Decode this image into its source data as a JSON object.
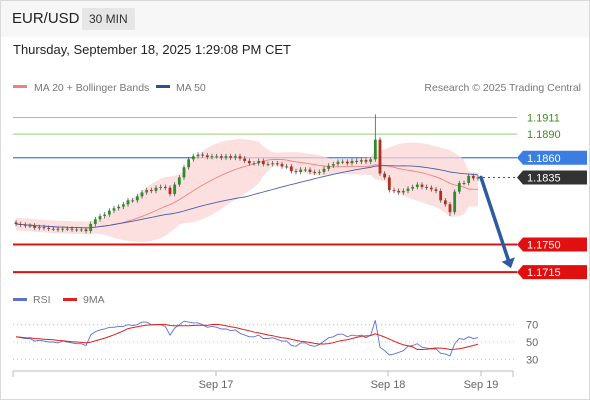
{
  "header": {
    "symbol": "EUR/USD",
    "timeframe": "30 MIN",
    "datetime": "Thursday, September 18, 2025 1:29:08 PM CET"
  },
  "legend": {
    "ma20_label": "MA 20 + Bollinger Bands",
    "ma50_label": "MA 50",
    "credit": "Research © 2025 Trading Central",
    "colors": {
      "ma20": "#f08080",
      "ma50": "#4a5fa8",
      "band_fill": "#fbd5d5"
    }
  },
  "levels": [
    {
      "name": "resistance-2",
      "value": 1.1911,
      "label": "1.1911",
      "style": "green-thin"
    },
    {
      "name": "resistance-1",
      "value": 1.189,
      "label": "1.1890",
      "style": "green-thin"
    },
    {
      "name": "pivot",
      "value": 1.186,
      "label": "1.1860",
      "style": "blue"
    },
    {
      "name": "last-price",
      "value": 1.1835,
      "label": "1.1835",
      "style": "dark"
    },
    {
      "name": "support-1",
      "value": 1.175,
      "label": "1.1750",
      "style": "red"
    },
    {
      "name": "support-2",
      "value": 1.1715,
      "label": "1.1715",
      "style": "red"
    }
  ],
  "chart_data": {
    "type": "candlestick",
    "instrument": "EUR/USD",
    "interval": "30 MIN",
    "ylim": [
      1.1691,
      1.1932
    ],
    "x_tick_labels": [
      "Sep 17",
      "Sep 18",
      "Sep 19"
    ],
    "candle_count": 100,
    "closes": [
      1.1776,
      1.1775,
      1.1774,
      1.1774,
      1.1771,
      1.1772,
      1.1771,
      1.177,
      1.177,
      1.1769,
      1.177,
      1.177,
      1.1769,
      1.1769,
      1.1769,
      1.1767,
      1.1776,
      1.1782,
      1.1786,
      1.1788,
      1.1793,
      1.1796,
      1.1798,
      1.1801,
      1.1806,
      1.1806,
      1.1811,
      1.1816,
      1.1819,
      1.1818,
      1.1822,
      1.1823,
      1.1822,
      1.1814,
      1.1826,
      1.1835,
      1.1848,
      1.1858,
      1.1862,
      1.1864,
      1.1863,
      1.1861,
      1.1862,
      1.1862,
      1.186,
      1.1862,
      1.186,
      1.1862,
      1.1859,
      1.1856,
      1.1853,
      1.1853,
      1.1856,
      1.1852,
      1.1852,
      1.1853,
      1.1852,
      1.1849,
      1.1849,
      1.1843,
      1.1842,
      1.1845,
      1.1845,
      1.1842,
      1.1841,
      1.1842,
      1.1846,
      1.185,
      1.1852,
      1.1855,
      1.1855,
      1.1853,
      1.1856,
      1.1855,
      1.1857,
      1.1855,
      1.1858,
      1.1883,
      1.184,
      1.1835,
      1.1819,
      1.1818,
      1.1816,
      1.1818,
      1.1821,
      1.1823,
      1.1826,
      1.1823,
      1.1822,
      1.182,
      1.1818,
      1.1806,
      1.1801,
      1.1791,
      1.1817,
      1.1828,
      1.1828,
      1.1837,
      1.1834,
      1.1835
    ],
    "forecast": {
      "from": 1.1835,
      "to": 1.1715,
      "direction": "down"
    },
    "indicators": {
      "ma20": "MA 20 + Bollinger Bands",
      "ma50": "MA 50"
    }
  },
  "rsi_panel": {
    "legend_rsi": "RSI",
    "legend_9ma": "9MA",
    "ylim": [
      20,
      80
    ],
    "ticks": [
      {
        "value": 70,
        "label": "70"
      },
      {
        "value": 50,
        "label": "50"
      },
      {
        "value": 30,
        "label": "30"
      }
    ],
    "colors": {
      "rsi": "#5b6fd6",
      "ma9": "#e02020"
    },
    "rsi_values": [
      56,
      55,
      54,
      54,
      51,
      52,
      51,
      50,
      50,
      49,
      51,
      50,
      49,
      48,
      48,
      46,
      58,
      62,
      64,
      65,
      67,
      67,
      68,
      68,
      70,
      69,
      70,
      73,
      73,
      70,
      70,
      70,
      68,
      58,
      66,
      70,
      74,
      73,
      72,
      72,
      70,
      67,
      68,
      67,
      65,
      65,
      63,
      64,
      60,
      58,
      56,
      56,
      58,
      54,
      54,
      55,
      53,
      51,
      51,
      46,
      45,
      49,
      49,
      46,
      45,
      47,
      51,
      55,
      56,
      59,
      59,
      56,
      58,
      57,
      58,
      55,
      58,
      75,
      44,
      40,
      35,
      36,
      38,
      40,
      45,
      46,
      48,
      44,
      43,
      42,
      42,
      37,
      36,
      34,
      48,
      54,
      53,
      56,
      54,
      55
    ]
  }
}
